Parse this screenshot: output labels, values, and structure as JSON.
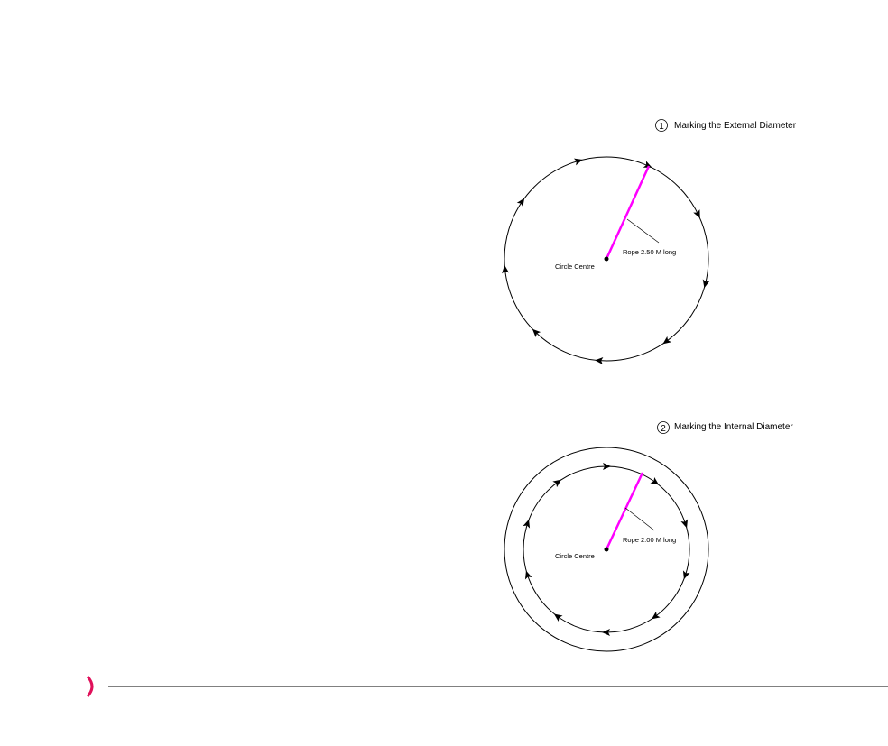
{
  "diagrams": [
    {
      "step_number": "1",
      "title": "Marking the External Diameter",
      "centre_label": "Circle Centre",
      "rope_label": "Rope 2.50 M long",
      "circle_count": 1
    },
    {
      "step_number": "2",
      "title": "Marking the Internal Diameter",
      "centre_label": "Circle Centre",
      "rope_label": "Rope 2.00 M long",
      "circle_count": 2
    }
  ],
  "colors": {
    "rope": "#ff00ff",
    "line": "#000000",
    "footer_accent": "#e0105a"
  }
}
